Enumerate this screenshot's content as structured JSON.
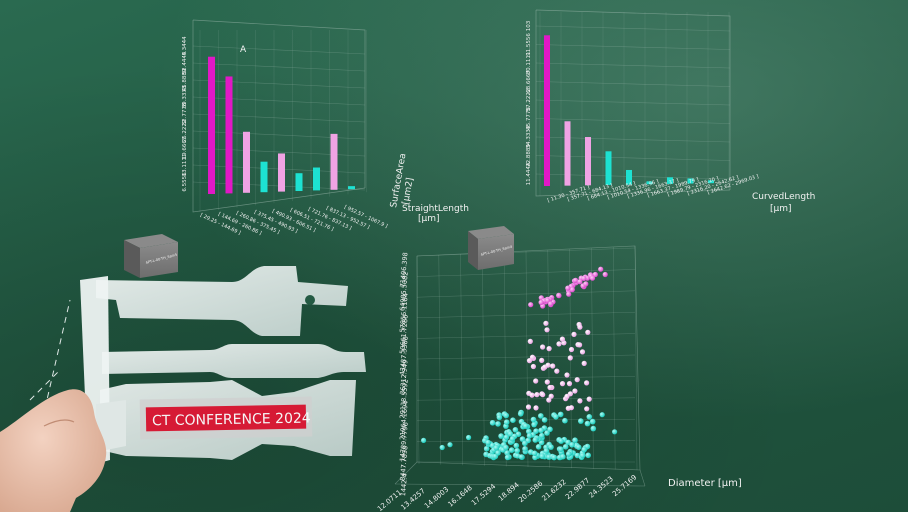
{
  "charts": [
    {
      "type": "bar",
      "y_ticks": [
        "5.3444",
        "52.4444",
        "45.8889",
        "39.3333",
        "32.7778",
        "26.2222",
        "19.6667",
        "13.1111",
        "6.5556"
      ],
      "ylabel": [
        "SurfaceArea",
        "[µm2]"
      ],
      "xlabel": [
        "StraightLength",
        "[µm]"
      ],
      "x_ticks": [
        "[ 29.25 - 144.69 ]",
        "[ 144.69 - 260.86 ]",
        "[ 260.86 - 375.45 ]",
        "[ 375.45 - 490.93 ]",
        "[ 490.93 - 606.51 ]",
        "[ 606.51 - 721.76 ]",
        "[ 721.76 - 837.13 ]",
        "[ 837.13 - 952.57 ]",
        "[ 952.57 - 1067.9 ]"
      ],
      "bars": [
        {
          "value": 54.0,
          "color": "#e118c6"
        },
        {
          "value": 46.0,
          "color": "#e118c6"
        },
        {
          "value": 24.0,
          "color": "#f0a3e4"
        },
        {
          "value": 12.0,
          "color": "#1de2d2"
        },
        {
          "value": 15.0,
          "color": "#f0a3e4"
        },
        {
          "value": 7.0,
          "color": "#1de2d2"
        },
        {
          "value": 9.0,
          "color": "#1de2d2"
        },
        {
          "value": 22.0,
          "color": "#f0a3e4"
        },
        {
          "value": 1.2,
          "color": "#1de2d2"
        }
      ],
      "ymax": 59.0,
      "marker": "A"
    },
    {
      "type": "bar",
      "y_ticks": [
        "103",
        "91.5556",
        "80.1111",
        "68.6667",
        "57.2222",
        "45.7778",
        "34.3333",
        "22.8889",
        "11.4444"
      ],
      "ylabel": [
        "CurvedLength",
        "[µm]"
      ],
      "x_ticks": [
        "[ 11.30 - 357.71 ]",
        "[ 357.71 - 684.13 ]",
        "[ 684.13 - 1010.54 ]",
        "[ 1010.54 - 1336.96 ]",
        "[ 1336.96 - 1663.37 ]",
        "[ 1663.37 - 1989.79 ]",
        "[ 1989.79 - 2316.20 ]",
        "[ 2316.20 - 2642.62 ]",
        "[ 2642.62 - 2969.03 ]"
      ],
      "bars": [
        {
          "value": 103.0,
          "color": "#e118c6"
        },
        {
          "value": 44.0,
          "color": "#f0a3e4"
        },
        {
          "value": 33.0,
          "color": "#f0a3e4"
        },
        {
          "value": 23.0,
          "color": "#1de2d2"
        },
        {
          "value": 10.0,
          "color": "#1de2d2"
        },
        {
          "value": 2.0,
          "color": "#1de2d2"
        },
        {
          "value": 4.5,
          "color": "#1de2d2"
        },
        {
          "value": 3.5,
          "color": "#1de2d2"
        },
        {
          "value": 2.0,
          "color": "#1de2d2"
        }
      ],
      "ymax": 108.0
    },
    {
      "type": "scatter",
      "y_ticks": [
        "71406.398",
        "64985.5082",
        "57856.1184",
        "50661.7286",
        "43487.3388",
        "36312.949",
        "29138.5592",
        "21964.1694",
        "14789.7796",
        "8447.7898",
        "1442.4"
      ],
      "x_ticks": [
        "12.0711",
        "13.4257",
        "14.8003",
        "16.1648",
        "17.5294",
        "18.894",
        "20.2586",
        "21.6232",
        "22.9877",
        "24.3523",
        "25.7169"
      ],
      "xlabel": "Diameter [µm]",
      "xlim": [
        12.0711,
        25.7169
      ],
      "ylim": [
        1442.4,
        71406.398
      ],
      "colors": {
        "high": "#e75fd9",
        "mid": "#f3a8ec",
        "low": "#18dccd"
      }
    }
  ],
  "cube_labels": [
    "4PT-L-00-TH_Sam5",
    "4PT-L-00-TH_Sam4"
  ],
  "banner_text": "CT CONFERENCE 2024",
  "colors": {
    "background": "#245a43",
    "magenta": "#e118c6",
    "pink": "#f0a3e4",
    "cyan": "#1de2d2"
  }
}
